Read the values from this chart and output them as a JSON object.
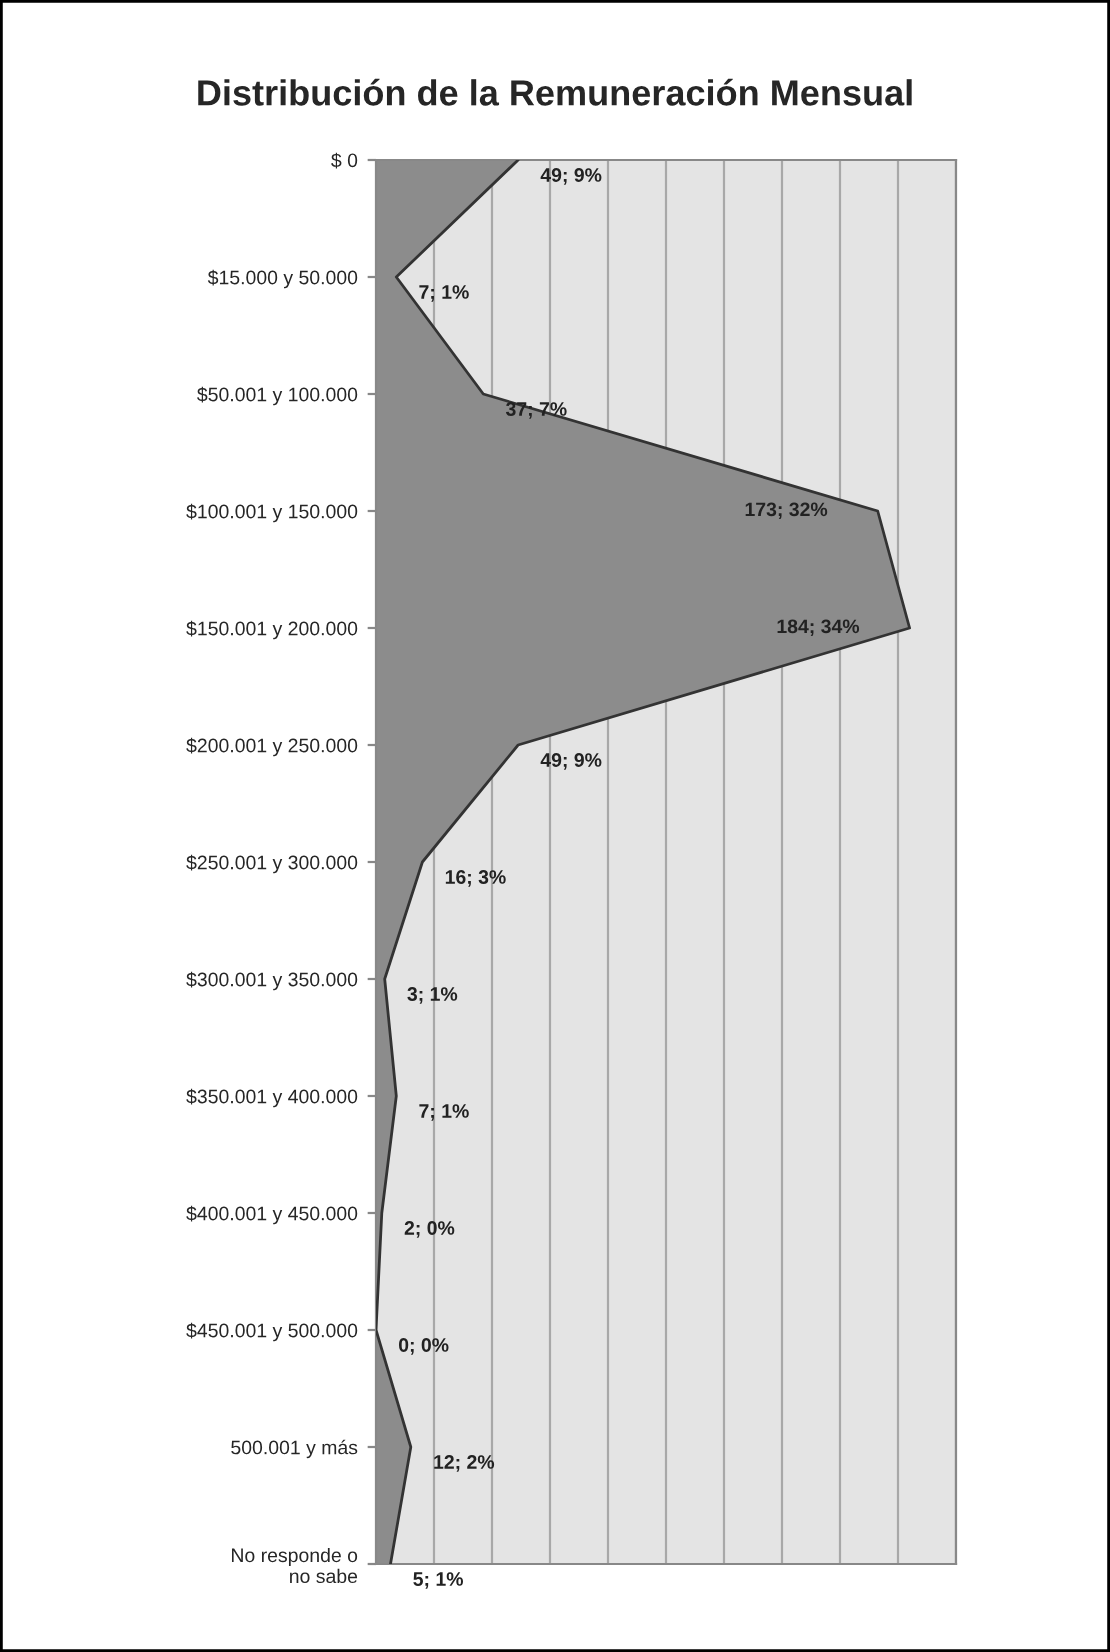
{
  "chart_data": {
    "type": "area",
    "orientation": "horizontal",
    "title": "Distribución de la Remuneración Mensual",
    "categories": [
      "$ 0",
      "$15.000 y 50.000",
      "$50.001 y 100.000",
      "$100.001 y 150.000",
      "$150.001 y 200.000",
      "$200.001 y 250.000",
      "$250.001 y 300.000",
      "$300.001 y 350.000",
      "$350.001 y 400.000",
      "$400.001 y 450.000",
      "$450.001 y 500.000",
      "500.001 y más",
      "No responde o\nno sabe"
    ],
    "series": [
      {
        "color": "#8c8c8c",
        "values": [
          49,
          7,
          37,
          173,
          184,
          49,
          16,
          3,
          7,
          2,
          0,
          12,
          5
        ],
        "value_labels": [
          "49; 9%",
          "7; 1%",
          "37; 7%",
          "173; 32%",
          "184; 34%",
          "49; 9%",
          "16; 3%",
          "3; 1%",
          "7; 1%",
          "2; 0%",
          "0; 0%",
          "12; 2%",
          "5; 1%"
        ]
      }
    ],
    "xlim": [
      0,
      200
    ],
    "xticks": [
      {
        "value": 0,
        "label": null
      },
      {
        "value": 20,
        "label": null
      },
      {
        "value": 40,
        "label": null
      },
      {
        "value": 60,
        "label": null
      },
      {
        "value": 80,
        "label": null
      },
      {
        "value": 100,
        "label": null
      },
      {
        "value": 120,
        "label": null
      },
      {
        "value": 140,
        "label": null
      },
      {
        "value": 160,
        "label": null
      },
      {
        "value": 180,
        "label": null
      },
      {
        "value": 200,
        "label": null
      }
    ],
    "tick_labels": "y",
    "grid": "x"
  }
}
